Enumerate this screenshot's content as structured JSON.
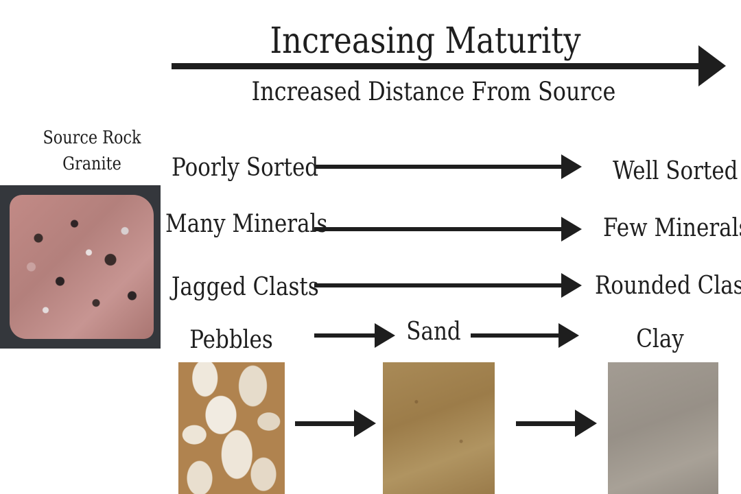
{
  "title": "Increasing Maturity",
  "subtitle": "Increased Distance From Source",
  "source": {
    "line1": "Source Rock",
    "line2": "Granite"
  },
  "rows": [
    {
      "left": "Poorly Sorted",
      "right": "Well Sorted"
    },
    {
      "left": "Many Minerals",
      "right": "Few Minerals"
    },
    {
      "left": "Jagged Clasts",
      "right": "Rounded Clasts"
    }
  ],
  "sediments": {
    "pebbles": "Pebbles",
    "sand": "Sand",
    "clay": "Clay"
  }
}
